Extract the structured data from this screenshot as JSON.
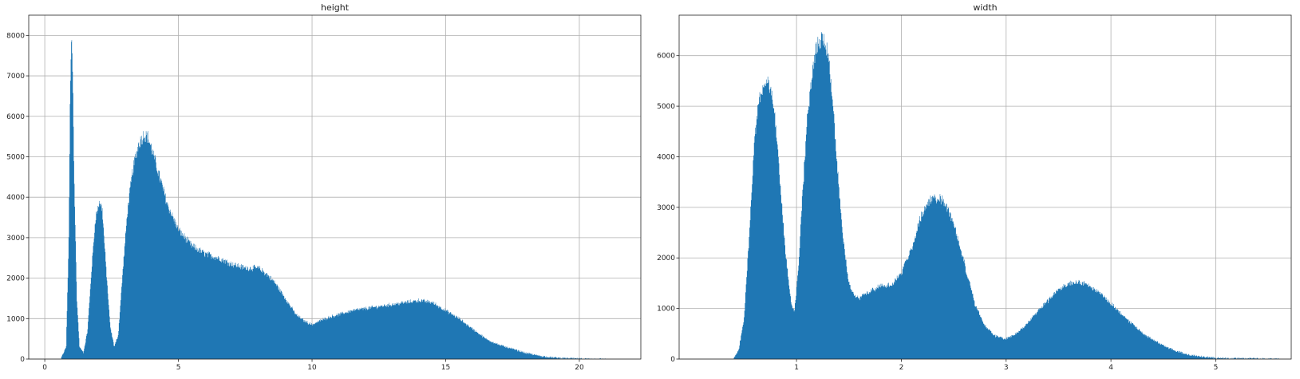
{
  "chart_data": [
    {
      "type": "histogram",
      "title": "height",
      "xlabel": "",
      "ylabel": "",
      "xlim": [
        -0.6,
        22.3
      ],
      "ylim": [
        0,
        8500
      ],
      "xticks": [
        0,
        5,
        10,
        15,
        20
      ],
      "yticks": [
        0,
        1000,
        2000,
        3000,
        4000,
        5000,
        6000,
        7000,
        8000
      ],
      "grid": true,
      "color": "#1f77b4",
      "bins_range": [
        0.6,
        21.5
      ],
      "profile": {
        "x": [
          0.6,
          0.8,
          0.9,
          0.95,
          1.0,
          1.05,
          1.1,
          1.2,
          1.3,
          1.45,
          1.6,
          1.75,
          1.9,
          2.05,
          2.15,
          2.3,
          2.45,
          2.6,
          2.75,
          2.9,
          3.1,
          3.3,
          3.5,
          3.7,
          3.85,
          4.0,
          4.3,
          4.6,
          5.0,
          5.5,
          6.0,
          6.5,
          7.0,
          7.5,
          8.0,
          8.3,
          8.6,
          9.0,
          9.4,
          9.7,
          10.0,
          10.3,
          10.7,
          11.0,
          11.5,
          12.0,
          12.5,
          13.0,
          13.5,
          14.0,
          14.5,
          15.0,
          15.5,
          16.0,
          16.5,
          17.0,
          17.5,
          18.0,
          18.5,
          19.0,
          19.5,
          20.0,
          20.5,
          21.0,
          21.5
        ],
        "y": [
          0,
          300,
          3000,
          6500,
          8000,
          7000,
          4500,
          1500,
          300,
          150,
          700,
          2200,
          3500,
          3900,
          3700,
          2200,
          800,
          300,
          600,
          2000,
          3700,
          4700,
          5300,
          5550,
          5500,
          5200,
          4500,
          3800,
          3200,
          2800,
          2600,
          2500,
          2350,
          2250,
          2250,
          2100,
          1900,
          1500,
          1100,
          950,
          850,
          950,
          1050,
          1100,
          1200,
          1250,
          1300,
          1350,
          1400,
          1450,
          1400,
          1200,
          1000,
          750,
          500,
          350,
          250,
          150,
          80,
          40,
          20,
          10,
          5,
          0,
          0
        ]
      }
    },
    {
      "type": "histogram",
      "title": "width",
      "xlabel": "",
      "ylabel": "",
      "xlim": [
        -0.12,
        5.72
      ],
      "ylim": [
        0,
        6800
      ],
      "xticks": [
        1,
        2,
        3,
        4,
        5
      ],
      "yticks": [
        0,
        1000,
        2000,
        3000,
        4000,
        5000,
        6000
      ],
      "grid": true,
      "color": "#1f77b4",
      "bins_range": [
        0.3,
        5.6
      ],
      "profile": {
        "x": [
          0.3,
          0.4,
          0.45,
          0.5,
          0.55,
          0.6,
          0.65,
          0.7,
          0.75,
          0.8,
          0.85,
          0.9,
          0.95,
          0.98,
          1.02,
          1.05,
          1.1,
          1.15,
          1.2,
          1.25,
          1.3,
          1.35,
          1.4,
          1.45,
          1.5,
          1.55,
          1.6,
          1.7,
          1.8,
          1.9,
          2.0,
          2.1,
          2.2,
          2.3,
          2.4,
          2.5,
          2.6,
          2.7,
          2.8,
          2.9,
          3.0,
          3.1,
          3.2,
          3.3,
          3.4,
          3.5,
          3.6,
          3.7,
          3.8,
          3.9,
          4.0,
          4.1,
          4.2,
          4.3,
          4.4,
          4.5,
          4.6,
          4.7,
          4.8,
          4.9,
          5.0,
          5.2,
          5.4,
          5.6
        ],
        "y": [
          0,
          0,
          200,
          800,
          2500,
          4400,
          5200,
          5500,
          5400,
          4700,
          3300,
          2000,
          1100,
          950,
          1800,
          3000,
          4700,
          5700,
          6200,
          6400,
          6100,
          5000,
          3500,
          2300,
          1500,
          1250,
          1200,
          1350,
          1450,
          1450,
          1700,
          2200,
          2900,
          3200,
          3150,
          2700,
          1900,
          1100,
          650,
          450,
          400,
          500,
          700,
          950,
          1150,
          1400,
          1500,
          1520,
          1450,
          1300,
          1100,
          900,
          700,
          520,
          380,
          270,
          180,
          110,
          70,
          40,
          20,
          10,
          5,
          0
        ]
      }
    }
  ]
}
